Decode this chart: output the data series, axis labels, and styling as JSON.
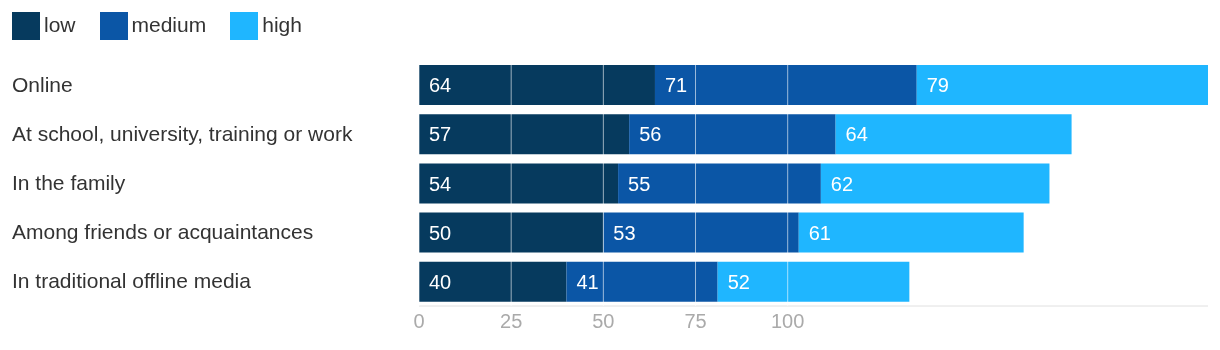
{
  "chart_data": {
    "type": "bar",
    "orientation": "horizontal",
    "stacked": true,
    "categories": [
      "Online",
      "At school, university, training or work",
      "In the family",
      "Among friends or acquaintances",
      "In traditional offline media"
    ],
    "series": [
      {
        "name": "low",
        "color": "#063a5e",
        "values": [
          64,
          57,
          54,
          50,
          40
        ]
      },
      {
        "name": "medium",
        "color": "#0b56a6",
        "values": [
          71,
          56,
          55,
          53,
          41
        ]
      },
      {
        "name": "high",
        "color": "#1fb6ff",
        "values": [
          79,
          64,
          62,
          61,
          52
        ]
      }
    ],
    "xlim": [
      0,
      214
    ],
    "xticks": [
      0,
      25,
      50,
      75,
      100
    ],
    "grid": "x",
    "legend": "top left",
    "data_labels": true
  }
}
